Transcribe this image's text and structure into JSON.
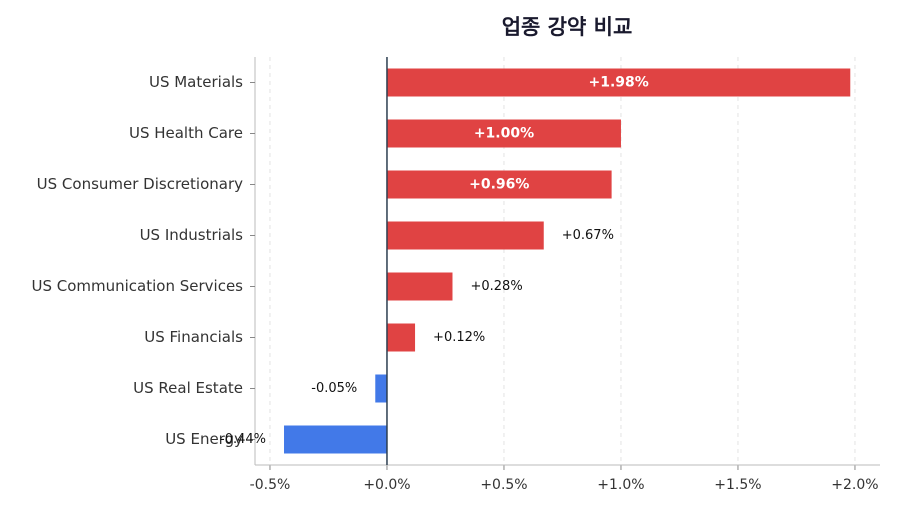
{
  "chart_data": {
    "type": "barh",
    "title": "업종 강약 비교",
    "categories": [
      "US Materials",
      "US Health Care",
      "US Consumer Discretionary",
      "US Industrials",
      "US Communication Services",
      "US Financials",
      "US Real Estate",
      "US Energy"
    ],
    "values": [
      1.98,
      1.0,
      0.96,
      0.67,
      0.28,
      0.12,
      -0.05,
      -0.44
    ],
    "value_labels": [
      "+1.98%",
      "+1.00%",
      "+0.96%",
      "+0.67%",
      "+0.28%",
      "+0.12%",
      "-0.05%",
      "-0.44%"
    ],
    "positive_color": "#e04343",
    "negative_color": "#4279e8",
    "xlim": [
      -0.564,
      2.107
    ],
    "xticks": [
      {
        "value": -0.5,
        "label": "-0.5%"
      },
      {
        "value": 0,
        "label": "+0.0%"
      },
      {
        "value": 0.5,
        "label": "+0.5%"
      },
      {
        "value": 1.0,
        "label": "+1.0%"
      },
      {
        "value": 1.5,
        "label": "+1.5%"
      },
      {
        "value": 2.0,
        "label": "+2.0%"
      }
    ],
    "grid": true
  }
}
